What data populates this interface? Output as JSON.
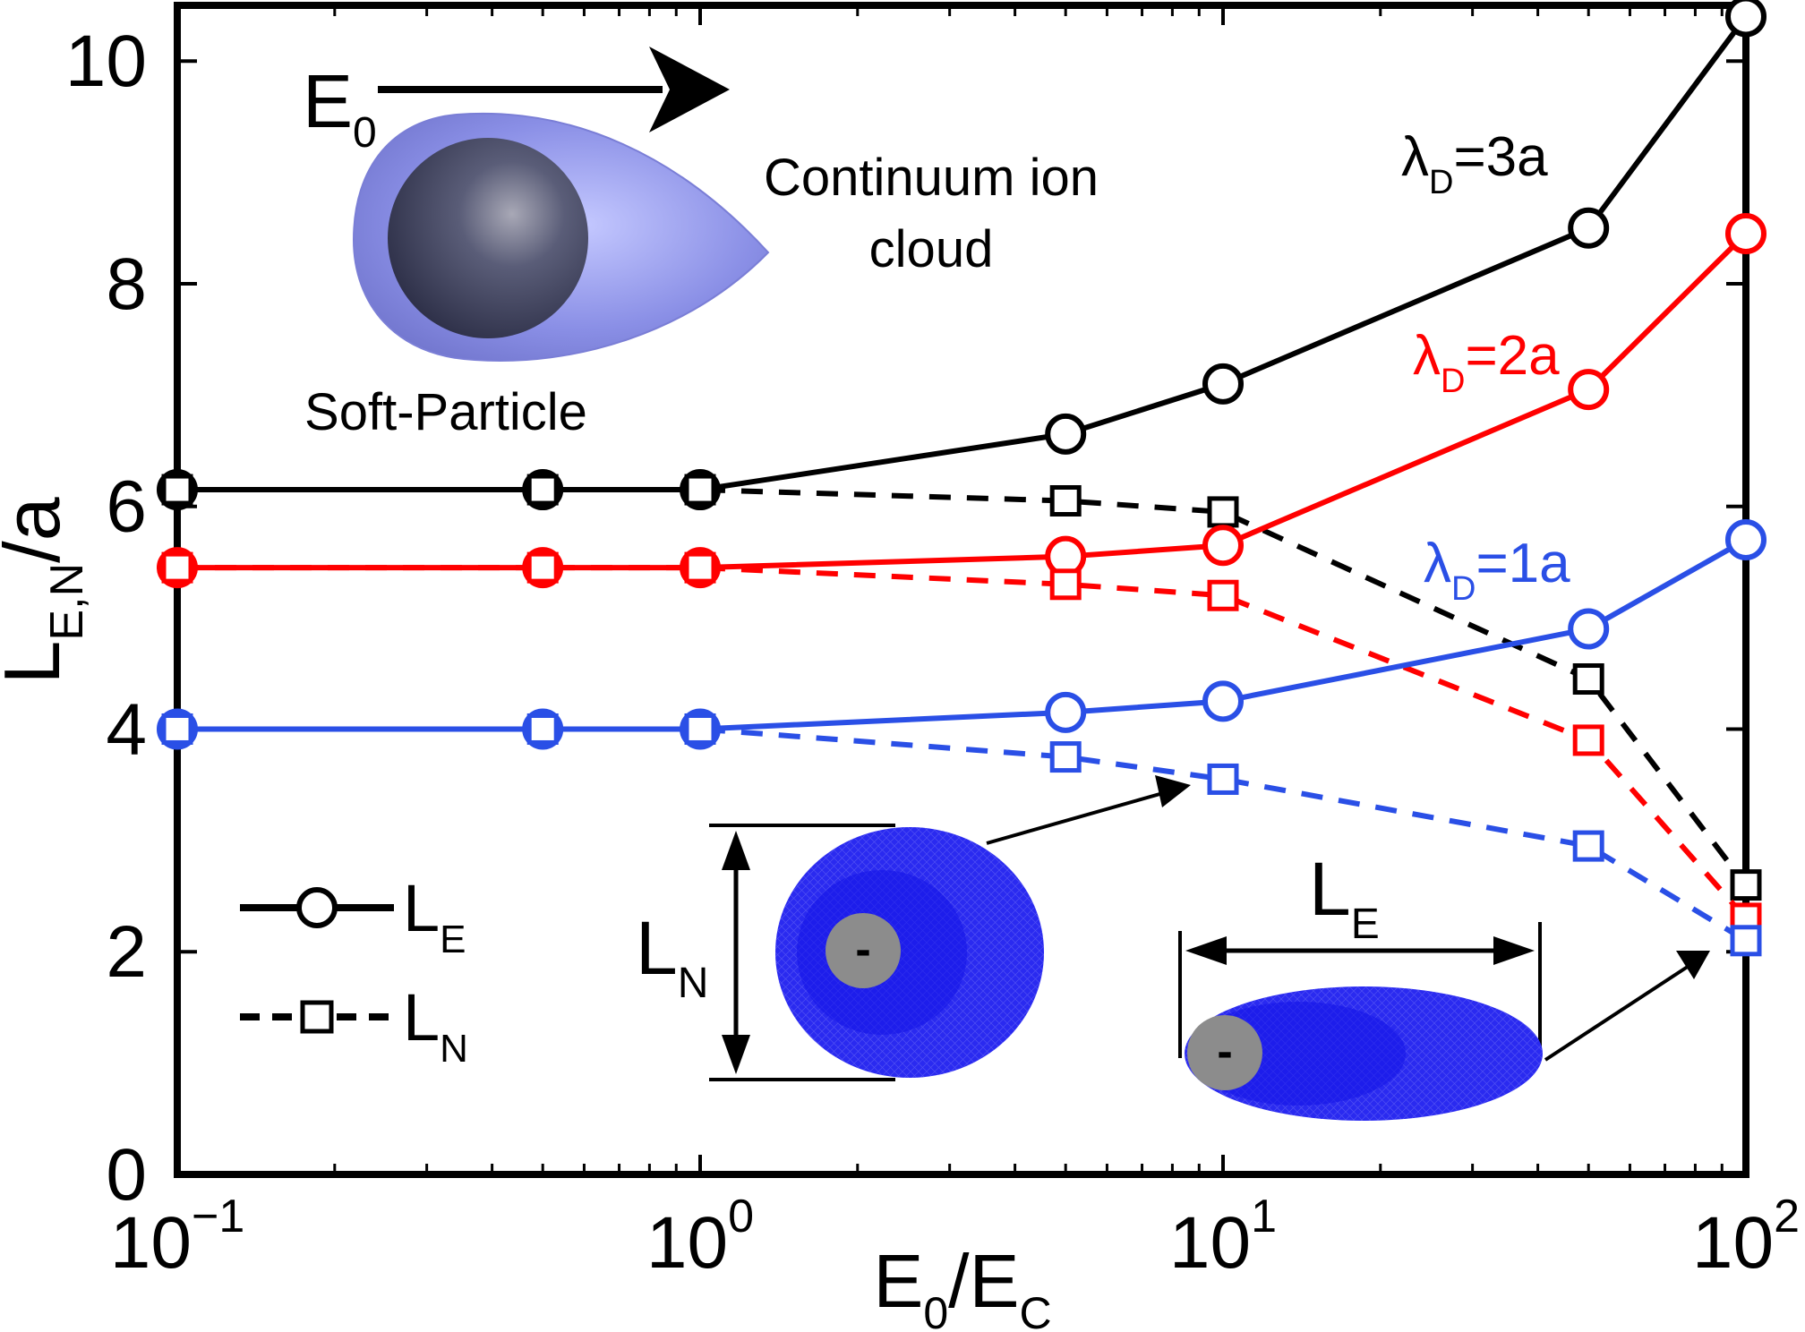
{
  "chart_data": {
    "type": "line",
    "x_scale": "log",
    "xlim": [
      0.1,
      100
    ],
    "ylim": [
      0,
      10.5
    ],
    "x_ticks": [
      0.1,
      1,
      10,
      100
    ],
    "x_tick_labels": [
      {
        "base": "10",
        "exp": "−1"
      },
      {
        "base": "10",
        "exp": "0"
      },
      {
        "base": "10",
        "exp": "1"
      },
      {
        "base": "10",
        "exp": "2"
      }
    ],
    "y_ticks": [
      0,
      2,
      4,
      6,
      8,
      10
    ],
    "y_tick_labels": [
      "0",
      "2",
      "4",
      "6",
      "8",
      "10"
    ],
    "xlabel": {
      "p1": "E",
      "s1": "0",
      "p2": "/E",
      "s2": "C"
    },
    "ylabel": {
      "main": "L",
      "sub": "E,N",
      "tail": "/a"
    },
    "x": [
      0.1,
      0.5,
      1,
      5,
      10,
      50,
      100
    ],
    "series": [
      {
        "curve": "L_E",
        "lambda_label": {
          "pre": "λ",
          "sub": "D",
          "post": "=3a"
        },
        "color": "#000000",
        "values": [
          6.15,
          6.15,
          6.15,
          6.65,
          7.1,
          8.5,
          10.4
        ]
      },
      {
        "curve": "L_N",
        "lambda_label": {
          "pre": "λ",
          "sub": "D",
          "post": "=3a"
        },
        "color": "#000000",
        "values": [
          6.15,
          6.15,
          6.15,
          6.05,
          5.95,
          4.45,
          2.6
        ]
      },
      {
        "curve": "L_E",
        "lambda_label": {
          "pre": "λ",
          "sub": "D",
          "post": "=2a"
        },
        "color": "#ff0000",
        "values": [
          5.45,
          5.45,
          5.45,
          5.55,
          5.65,
          7.05,
          8.45
        ]
      },
      {
        "curve": "L_N",
        "lambda_label": {
          "pre": "λ",
          "sub": "D",
          "post": "=2a"
        },
        "color": "#ff0000",
        "values": [
          5.45,
          5.45,
          5.45,
          5.3,
          5.2,
          3.9,
          2.3
        ]
      },
      {
        "curve": "L_E",
        "lambda_label": {
          "pre": "λ",
          "sub": "D",
          "post": "=1a"
        },
        "color": "#2a4fe6",
        "values": [
          4.0,
          4.0,
          4.0,
          4.15,
          4.25,
          4.9,
          5.7
        ]
      },
      {
        "curve": "L_N",
        "lambda_label": {
          "pre": "λ",
          "sub": "D",
          "post": "=1a"
        },
        "color": "#2a4fe6",
        "values": [
          4.0,
          4.0,
          4.0,
          3.75,
          3.55,
          2.95,
          2.1
        ]
      }
    ],
    "legend": {
      "placement": "bottom-left",
      "entries": [
        {
          "main": "L",
          "sub": "E",
          "style": "solid-circle"
        },
        {
          "main": "L",
          "sub": "N",
          "style": "dashed-square"
        }
      ]
    },
    "annotations": {
      "field": {
        "main": "E",
        "sub": "0"
      },
      "cloud_label_line1": "Continuum ion",
      "cloud_label_line2": "cloud",
      "particle_label": "Soft-Particle",
      "ln_dim": {
        "main": "L",
        "sub": "N"
      },
      "le_dim": {
        "main": "L",
        "sub": "E"
      },
      "core_sign": "-"
    }
  }
}
